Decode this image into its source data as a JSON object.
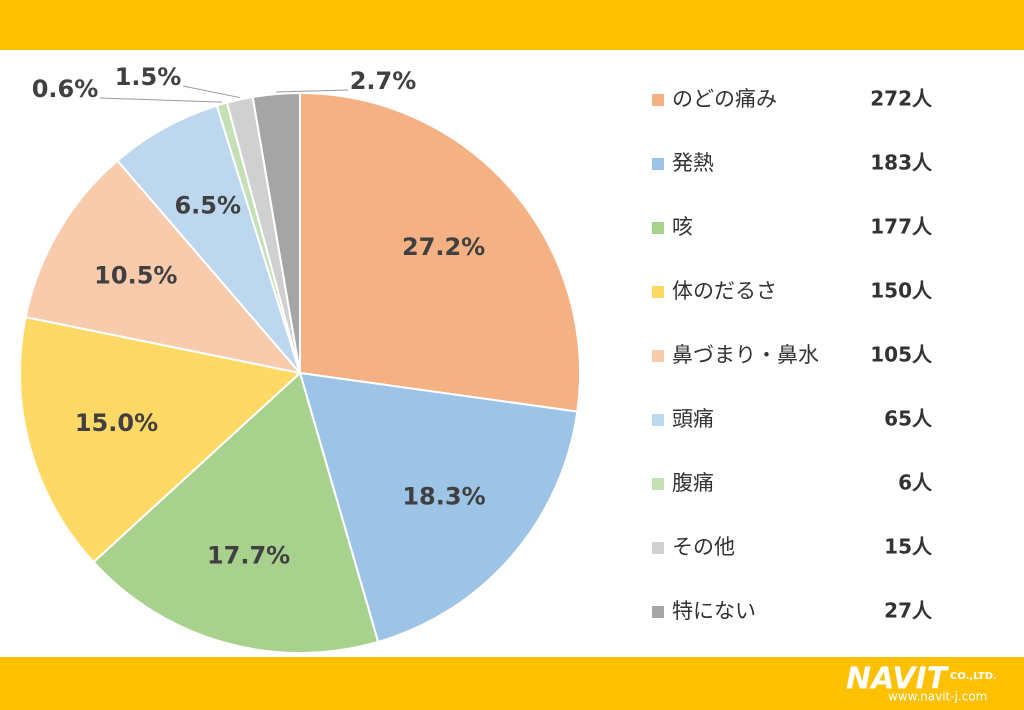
{
  "chart_data": {
    "type": "pie",
    "categories": [
      "のどの痛み",
      "発熱",
      "咳",
      "体のだるさ",
      "鼻づまり・鼻水",
      "頭痛",
      "腹痛",
      "その他",
      "特にない"
    ],
    "values": [
      27.2,
      18.3,
      17.7,
      15.0,
      10.5,
      6.5,
      0.6,
      1.5,
      2.7
    ],
    "value_labels": [
      "27.2%",
      "18.3%",
      "17.7%",
      "15.0%",
      "10.5%",
      "6.5%",
      "0.6%",
      "1.5%",
      "2.7%"
    ],
    "count_labels": [
      "272人",
      "183人",
      "177人",
      "150人",
      "105人",
      "65人",
      "6人",
      "15人",
      "27人"
    ],
    "colors": [
      "#f4b183",
      "#9dc3e6",
      "#a9d18e",
      "#ffd966",
      "#f8cbad",
      "#bdd7ee",
      "#c5e0b4",
      "#d0d0d0",
      "#a5a5a5"
    ],
    "legend": "right"
  },
  "footer": {
    "logo": "NAVIT",
    "company": "CO.,LTD.",
    "url": "www.navit-j.com"
  }
}
